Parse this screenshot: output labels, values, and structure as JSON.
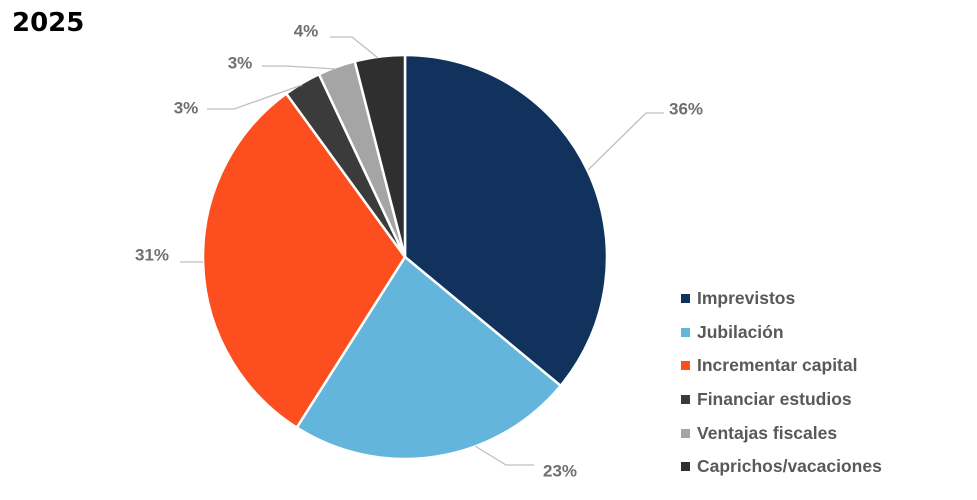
{
  "chart_data": {
    "type": "pie",
    "title": "2025",
    "categories": [
      "Imprevistos",
      "Jubilación",
      "Incrementar capital",
      "Financiar estudios",
      "Ventajas fiscales",
      "Caprichos/vacaciones"
    ],
    "values": [
      36,
      23,
      31,
      3,
      3,
      4
    ],
    "labels": [
      "36%",
      "23%",
      "31%",
      "3%",
      "3%",
      "4%"
    ],
    "colors": [
      "#12325e",
      "#63b5dc",
      "#fc4e1e",
      "#3b3b3b",
      "#a5a5a5",
      "#2f2f2f"
    ],
    "legend_position": "right"
  }
}
